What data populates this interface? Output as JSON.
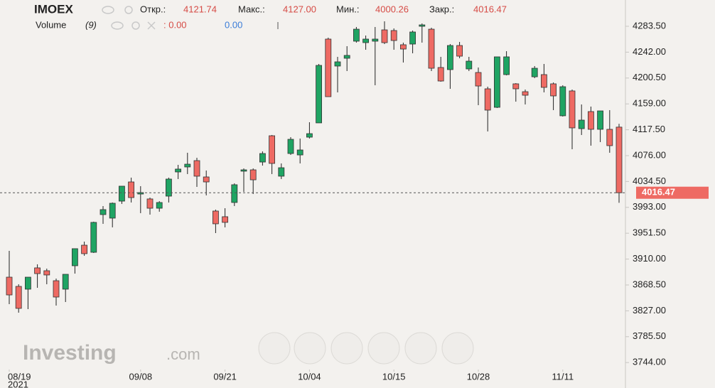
{
  "chart_data": {
    "type": "candlestick",
    "title": "IMOEX",
    "header": {
      "open_label": "Откр.:",
      "open": "4121.74",
      "high_label": "Макс.:",
      "high": "4127.00",
      "low_label": "Мин.:",
      "low": "4000.26",
      "close_label": "Закр.:",
      "close": "4016.47"
    },
    "volume": {
      "label": "Volume",
      "period": "(9)",
      "value1": ": 0.00",
      "value2": "0.00"
    },
    "watermark": [
      "Investing",
      ".com"
    ],
    "year_label": "2021",
    "categories": [
      "08/19",
      null,
      null,
      null,
      null,
      null,
      null,
      null,
      null,
      null,
      null,
      null,
      null,
      null,
      "09/08",
      null,
      null,
      null,
      null,
      null,
      null,
      null,
      null,
      "09/21",
      null,
      null,
      null,
      null,
      null,
      null,
      null,
      null,
      "10/04",
      null,
      null,
      null,
      null,
      null,
      null,
      null,
      null,
      "10/15",
      null,
      null,
      null,
      null,
      null,
      null,
      null,
      null,
      "10/28",
      null,
      null,
      null,
      null,
      null,
      null,
      null,
      null,
      "11/11",
      null,
      null,
      null,
      null,
      null,
      null
    ],
    "open": [
      3881.0,
      3866.2,
      3861.7,
      3895.9,
      3891.3,
      3875.3,
      3861.7,
      3899.3,
      3932.3,
      3920.9,
      3981.4,
      3975.7,
      4003.0,
      4033.8,
      4014.4,
      4006.5,
      3991.6,
      4011.0,
      4049.8,
      4057.8,
      4068.0,
      4041.8,
      3987.1,
      3978.0,
      4000.8,
      4051.0,
      4053.2,
      4065.7,
      4107.9,
      4043.0,
      4079.4,
      4077.1,
      4105.6,
      4128.5,
      4263.0,
      4219.7,
      4232.2,
      4259.6,
      4257.3,
      4259.6,
      4277.8,
      4276.7,
      4253.9,
      4255.0,
      4283.5,
      4278.9,
      4217.4,
      4214.0,
      4252.7,
      4215.1,
      4209.4,
      4183.2,
      4153.5,
      4206.0,
      4191.2,
      4178.6,
      4202.5,
      4206.0,
      4191.2,
      4139.9,
      4179.8,
      4119.3,
      4146.7,
      4118.2,
      4118.2,
      4121.74
    ],
    "high": [
      3923.2,
      3869.6,
      3881.0,
      3901.6,
      3894.7,
      3878.8,
      3885.6,
      3926.7,
      3938.0,
      3970.0,
      3995.1,
      4000.8,
      4027.0,
      4040.7,
      4027.0,
      4008.7,
      4003.0,
      4040.7,
      4061.2,
      4080.6,
      4072.6,
      4052.1,
      3989.4,
      3991.6,
      4031.5,
      4055.5,
      4055.5,
      4082.8,
      4109.1,
      4063.5,
      4105.6,
      4103.4,
      4129.6,
      4223.1,
      4265.3,
      4234.5,
      4251.6,
      4282.4,
      4268.7,
      4282.4,
      4291.5,
      4280.1,
      4257.3,
      4276.7,
      4288.1,
      4281.2,
      4234.5,
      4255.0,
      4258.4,
      4234.5,
      4217.4,
      4186.6,
      4234.5,
      4243.6,
      4192.3,
      4182.0,
      4219.7,
      4223.1,
      4193.4,
      4188.9,
      4182.0,
      4158.1,
      4154.7,
      4147.8,
      4149.0,
      4127.0
    ],
    "low": [
      3837.7,
      3824.0,
      3829.7,
      3863.9,
      3869.6,
      3835.4,
      3841.1,
      3886.7,
      3915.3,
      3919.8,
      3966.6,
      3960.9,
      3998.5,
      4000.8,
      3983.7,
      3981.4,
      3986.0,
      4000.8,
      4038.4,
      4046.4,
      4025.8,
      4012.2,
      3951.7,
      3960.9,
      3995.1,
      4017.9,
      4014.4,
      4060.0,
      4046.4,
      4038.4,
      4077.1,
      4063.5,
      4103.4,
      4128.5,
      4170.6,
      4177.5,
      4211.7,
      4257.3,
      4245.9,
      4188.9,
      4255.0,
      4245.9,
      4225.4,
      4240.2,
      4257.3,
      4211.7,
      4194.6,
      4183.2,
      4232.2,
      4211.7,
      4156.9,
      4114.8,
      4152.4,
      4204.8,
      4162.6,
      4158.1,
      4200.3,
      4177.5,
      4149.0,
      4138.7,
      4086.3,
      4109.1,
      4092.0,
      4097.7,
      4080.6,
      4000.26
    ],
    "close": [
      3852.5,
      3830.9,
      3881.0,
      3886.7,
      3884.5,
      3849.1,
      3885.6,
      3926.7,
      3918.7,
      3968.9,
      3989.4,
      3999.6,
      4027.0,
      4008.7,
      4016.7,
      3991.6,
      4000.8,
      4038.4,
      4054.4,
      4062.3,
      4043.0,
      4033.8,
      3966.6,
      3968.9,
      4029.3,
      4053.2,
      4037.2,
      4079.4,
      4063.5,
      4056.6,
      4102.2,
      4085.1,
      4111.3,
      4220.8,
      4170.6,
      4226.5,
      4236.8,
      4278.9,
      4263.0,
      4263.0,
      4257.3,
      4260.7,
      4247.0,
      4274.4,
      4285.8,
      4216.2,
      4195.7,
      4252.7,
      4235.6,
      4227.6,
      4187.7,
      4149.0,
      4234.5,
      4234.5,
      4183.2,
      4172.9,
      4216.2,
      4185.5,
      4171.8,
      4186.6,
      4120.5,
      4133.0,
      4118.2,
      4147.8,
      4092.0,
      4016.47
    ],
    "up_color": "#1fa463",
    "down_color": "#ee6a63",
    "current_price": {
      "value": 4016.47,
      "label": "4016.47"
    },
    "ylim": [
      3732.8,
      4325.7
    ],
    "yticks": [
      {
        "value": 4283.5,
        "label": "4283.50"
      },
      {
        "value": 4242,
        "label": "4242.00"
      },
      {
        "value": 4200.5,
        "label": "4200.50"
      },
      {
        "value": 4159,
        "label": "4159.00"
      },
      {
        "value": 4117.5,
        "label": "4117.50"
      },
      {
        "value": 4076,
        "label": "4076.00"
      },
      {
        "value": 4034.5,
        "label": "4034.50"
      },
      {
        "value": 3993,
        "label": "3993.00"
      },
      {
        "value": 3951.5,
        "label": "3951.50"
      },
      {
        "value": 3910,
        "label": "3910.00"
      },
      {
        "value": 3868.5,
        "label": "3868.50"
      },
      {
        "value": 3827,
        "label": "3827.00"
      },
      {
        "value": 3785.5,
        "label": "3785.50"
      },
      {
        "value": 3744,
        "label": "3744.00"
      }
    ],
    "grid": false
  }
}
